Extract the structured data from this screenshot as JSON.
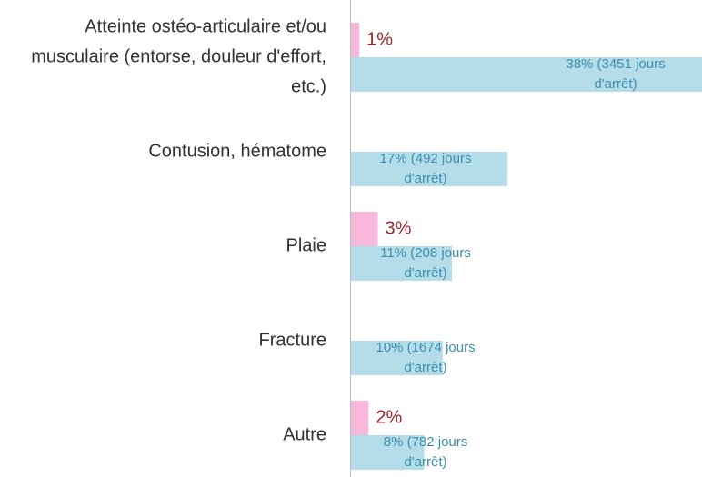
{
  "chart_data": {
    "type": "bar",
    "orientation": "horizontal",
    "categories": [
      "Atteinte ostéo-articulaire et/ou musculaire (entorse, douleur d'effort, etc.)",
      "Contusion, hématome",
      "Plaie",
      "Fracture",
      "Autre"
    ],
    "series": [
      {
        "color": "#f8b8dc",
        "values": [
          1,
          null,
          3,
          null,
          2
        ],
        "value_labels": [
          "1%",
          null,
          "3%",
          null,
          "2%"
        ]
      },
      {
        "color": "#b4dde9",
        "values": [
          38,
          17,
          11,
          10,
          8
        ],
        "value_labels": [
          "38% (3451 jours d'arrêt)",
          "17% (492 jours d'arrêt)",
          "11% (208 jours d'arrêt)",
          "10% (1674 jours d'arrêt)",
          "8% (782 jours d'arrêt)"
        ]
      }
    ]
  }
}
